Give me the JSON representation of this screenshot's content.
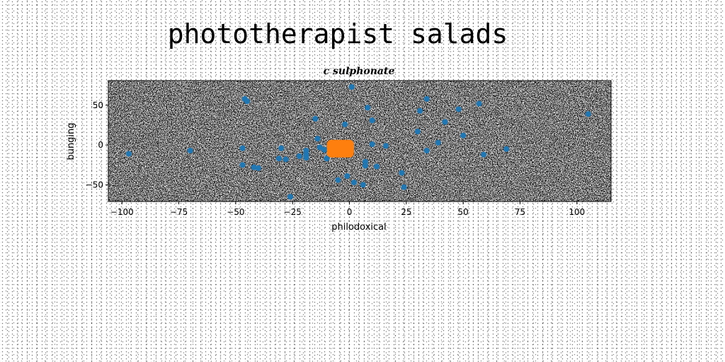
{
  "chart_data": {
    "type": "scatter",
    "title": "phototherapist salads",
    "subtitle": "c sulphonate",
    "xlabel": "philodoxical",
    "ylabel": "bunging",
    "xlim": [
      -106,
      115
    ],
    "ylim": [
      -71,
      81
    ],
    "xticks": [
      -100,
      -75,
      -50,
      -25,
      0,
      25,
      50,
      75,
      100
    ],
    "yticks": [
      -50,
      0,
      50
    ],
    "plot_background": "#808080",
    "grid": false,
    "series": [
      {
        "color": "#1f77b4",
        "points": [
          [
            -97,
            -11
          ],
          [
            -70,
            -7
          ],
          [
            -46,
            58
          ],
          [
            -45,
            55
          ],
          [
            -47,
            -4
          ],
          [
            -47,
            -25
          ],
          [
            -42,
            -28
          ],
          [
            -40,
            -29
          ],
          [
            -31,
            -17
          ],
          [
            -30,
            -4
          ],
          [
            -28,
            -18
          ],
          [
            -26,
            -65
          ],
          [
            -22,
            -14
          ],
          [
            -19,
            -11
          ],
          [
            -19,
            -7
          ],
          [
            -19,
            -14
          ],
          [
            -19,
            -16
          ],
          [
            -15,
            33
          ],
          [
            -14,
            8
          ],
          [
            -13,
            -3
          ],
          [
            -11,
            -6
          ],
          [
            -10,
            -17
          ],
          [
            -5,
            -44
          ],
          [
            -1,
            -39
          ],
          [
            1,
            73
          ],
          [
            2,
            -47
          ],
          [
            -2,
            26
          ],
          [
            6,
            -50
          ],
          [
            7,
            -21
          ],
          [
            7,
            -26
          ],
          [
            8,
            47
          ],
          [
            10,
            31
          ],
          [
            10,
            1
          ],
          [
            12,
            -27
          ],
          [
            16,
            -1
          ],
          [
            23,
            -35
          ],
          [
            24,
            -53
          ],
          [
            30,
            17
          ],
          [
            31,
            43
          ],
          [
            34,
            -7
          ],
          [
            34,
            58
          ],
          [
            39,
            3
          ],
          [
            42,
            29
          ],
          [
            48,
            45
          ],
          [
            50,
            12
          ],
          [
            57,
            52
          ],
          [
            59,
            -12
          ],
          [
            69,
            -5
          ],
          [
            105,
            39
          ]
        ]
      },
      {
        "color": "#ff7f0e",
        "points": [
          [
            -4,
            -5
          ]
        ]
      }
    ]
  }
}
